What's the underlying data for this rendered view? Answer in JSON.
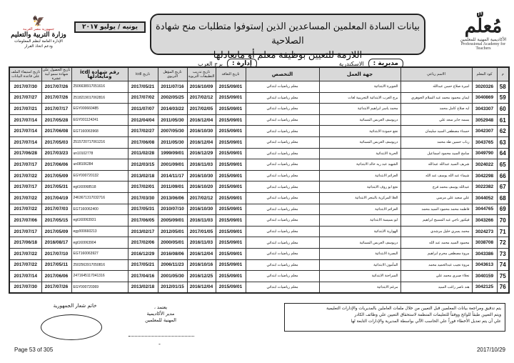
{
  "header": {
    "title_line1": "بيانات السادة المعلمين المساعدين الذين إستوفوا متطلبات منح شهادة الصلاحية",
    "title_line2": "اللازمة للتعيين  بوظيفة معلم أو مايعادلها",
    "period": "يونيه / يوليو ٢٠١٧",
    "academy_logo_text_ar": "الأكاديمية المهنية للمعلمين",
    "academy_logo_text_en": "Professional Academy for Teachers",
    "ministry_logo": {
      "country": "جمهورية مصر العربية",
      "ministry": "وزارة التربية والتعليم",
      "dept_line1": "الإدارة العامة لنظم المعلومات",
      "dept_line2": "ودعم اتخاذ القرار"
    },
    "directorate_label": "مديرية :",
    "directorate_value": "الاسكندرية",
    "administration_label": "إدارة :",
    "administration_value": "برج العرب"
  },
  "table": {
    "columns": [
      "م",
      "كود المعلم",
      "الاسم رباعي",
      "جهة العمل",
      "التخصص",
      "تاريخ التعاقد",
      "تاريخ تدريب التطبيقات التربوية",
      "تاريخ المؤهل التربوي",
      "تاريخ icdl",
      "رقم شهادة icdl ومايعادلها",
      "تاريخ الحصول على شهادة سمو أبية عشرة",
      "تاريخ استيفاء الملف على قاعدة البيانات"
    ],
    "rows": [
      {
        "n": "58",
        "code": "3020326",
        "name": "اميرة صلاح حسن عبدالله",
        "work": "الجويرة الابتدائية",
        "spec": "معلم رياضيات ابتدائي",
        "contract": "2015/09/01",
        "training": "2016/10/09",
        "qual": "2011/07/16",
        "icdl_date": "2017/05/21",
        "icdl_no": "2506638917051616",
        "cert": "2017/07/26",
        "file": "2017/07/30"
      },
      {
        "n": "59",
        "code": "3040869",
        "name": "ايمان محمود محمد عبد السلام الجوهري",
        "work": "برج العرب الابتدائية التجريبية لغات",
        "spec": "معلم رياضيات ابتدائي",
        "contract": "2015/09/01",
        "training": "2017/02/12",
        "qual": "2002/05/25",
        "icdl_date": "2017/07/02",
        "icdl_no": "2518219017062816",
        "cert": "2017/07/26",
        "file": "2017/07/27"
      },
      {
        "n": "60",
        "code": "3043307",
        "name": "ايه صلاح كامل محمد",
        "work": "محمد ياسر ابراهيم الابتدائية",
        "spec": "معلم رياضيات ابتدائي",
        "contract": "2015/09/01",
        "training": "2017/02/05",
        "qual": "2014/03/22",
        "icdl_date": "2011/07/07",
        "icdl_no": "EGY000660485",
        "cert": "2017/07/17",
        "file": "2017/07/21"
      },
      {
        "n": "61",
        "code": "3052948",
        "name": "بسمه جابر سعد علي",
        "work": "دريوسف العربس المسائية",
        "spec": "معلم رياضيات ابتدائي",
        "contract": "2015/09/01",
        "training": "2016/12/04",
        "qual": "2011/05/30",
        "icdl_date": "2012/04/04",
        "icdl_no": "EGY001124241",
        "cert": "2017/05/28",
        "file": "2017/07/14"
      },
      {
        "n": "62",
        "code": "3042307",
        "name": "حسناء مصطفى السيد سليمان",
        "work": "نجع حمودة الابتدائية",
        "spec": "معلم رياضيات ابتدائي",
        "contract": "2015/09/01",
        "training": "2016/10/30",
        "qual": "2007/05/30",
        "icdl_date": "2017/02/27",
        "icdl_no": "EGT160063968",
        "cert": "2017/06/08",
        "file": "2017/07/14"
      },
      {
        "n": "63",
        "code": "3043765",
        "name": "رباب حسين طه محمد",
        "work": "دريوسف العربس المسائية",
        "spec": "معلم رياضيات ابتدائي",
        "contract": "2015/09/01",
        "training": "2016/12/04",
        "qual": "2011/05/30",
        "icdl_date": "2017/06/08",
        "icdl_no": "2515720717061216",
        "cert": "2017/05/03",
        "file": "2017/07/14"
      },
      {
        "n": "64",
        "code": "3049790",
        "name": "سامح السيد محمود اسماعيل",
        "work": "الحرية الابتدائية",
        "spec": "معلم رياضيات ابتدائي",
        "contract": "2015/09/01",
        "training": "2016/12/29",
        "qual": "1999/09/01",
        "icdl_date": "2011/02/28",
        "icdl_no": "un10102778",
        "cert": "2017/03/23",
        "file": "2017/06/28"
      },
      {
        "n": "65",
        "code": "3024022",
        "name": "شريف السيد عبدالله عبدالله",
        "work": "الشهيد عبد ربه خالد الابتدائية",
        "spec": "معلم رياضيات ابتدائي",
        "contract": "2015/09/01",
        "training": "2016/11/03",
        "qual": "2001/09/01",
        "icdl_date": "2012/03/15",
        "icdl_no": "un08106284",
        "cert": "2017/06/06",
        "file": "2017/07/17"
      },
      {
        "n": "66",
        "code": "3042298",
        "name": "شيماء عبد الله يوسف عبد الله",
        "work": "العزائم الابتدائية",
        "spec": "معلم رياضيات ابتدائي",
        "contract": "2015/09/01",
        "training": "2016/10/30",
        "qual": "2014/11/17",
        "icdl_date": "2013/02/18",
        "icdl_no": "EGY000720132",
        "cert": "2017/05/09",
        "file": "2017/07/22"
      },
      {
        "n": "67",
        "code": "3022382",
        "name": "عبدالله يوسف محمد فرج",
        "work": "نجع ابو روف الابتدائية",
        "spec": "معلم رياضيات ابتدائي",
        "contract": "2015/09/01",
        "training": "2016/10/20",
        "qual": "2011/09/01",
        "icdl_date": "2017/02/01",
        "icdl_no": "egt160068518",
        "cert": "2017/05/31",
        "file": "2017/07/17"
      },
      {
        "n": "68",
        "code": "3044052",
        "name": "علي سعيد علي مرسي",
        "work": "العلا المركزية بالبنجر الابتدائية",
        "spec": "معلم رياضيات ابتدائي",
        "contract": "2015/09/01",
        "training": "2017/02/12",
        "qual": "2013/06/06",
        "icdl_date": "2017/03/30",
        "icdl_no": "2463671317032716",
        "cert": "2017/04/19",
        "file": "2017/07/22"
      },
      {
        "n": "69",
        "code": "3044765",
        "name": "فاطمه محمد محمود السيد محمد",
        "work": "العزائم الابتدائية",
        "spec": "معلم رياضيات ابتدائي",
        "contract": "2015/09/01",
        "training": "2016/10/30",
        "qual": "2010/07/10",
        "icdl_date": "2017/05/31",
        "icdl_no": "EGT160062400",
        "cert": "2017/07/03",
        "file": "2017/07/22"
      },
      {
        "n": "70",
        "code": "3043266",
        "name": "فيكتور ناجي عبد المسيح ابراهيم",
        "work": "ابو بسيسة الابتدائية",
        "spec": "معلم رياضيات ابتدائي",
        "contract": "2015/09/01",
        "training": "2016/11/03",
        "qual": "2005/09/01",
        "icdl_date": "2017/06/05",
        "icdl_no": "egt160063931",
        "cert": "2017/05/15",
        "file": "2017/07/06"
      },
      {
        "n": "71",
        "code": "3024273",
        "name": "محمد يسري خليل مرشدي",
        "work": "الهوارية الابتدائية",
        "spec": "معلم رياضيات ابتدائي",
        "contract": "2015/09/01",
        "training": "2017/01/05",
        "qual": "2012/05/01",
        "icdl_date": "2013/02/17",
        "icdl_no": "egy000660213",
        "cert": "2017/05/09",
        "file": "2017/07/17"
      },
      {
        "n": "72",
        "code": "3038708",
        "name": "محمود السيد محمد عبد الله",
        "work": "دريوسف العربس المسائية",
        "spec": "معلم رياضيات ابتدائي",
        "contract": "2015/09/01",
        "training": "2016/11/03",
        "qual": "2000/05/01",
        "icdl_date": "2017/02/06",
        "icdl_no": "egt160063904",
        "cert": "2016/08/17",
        "file": "2017/06/18"
      },
      {
        "n": "73",
        "code": "3043386",
        "name": "مروة مصطفى محرم ابراهيم",
        "work": "البصرة الابتدائية",
        "spec": "معلم رياضيات ابتدائي",
        "contract": "2015/09/01",
        "training": "2016/12/04",
        "qual": "2016/08/06",
        "icdl_date": "2016/12/29",
        "icdl_no": "EGT160063927",
        "cert": "2017/07/10",
        "file": "2017/07/22"
      },
      {
        "n": "74",
        "code": "3043613",
        "name": "مروة نجيب عبدالحميد محمد",
        "work": "المأمون الابتدائية",
        "spec": "معلم رياضيات ابتدائي",
        "contract": "2015/09/01",
        "training": "2016/10/16",
        "qual": "2006/11/23",
        "icdl_date": "2017/05/21",
        "icdl_no": "2502563917050816",
        "cert": "2017/05/11",
        "file": "2017/07/22"
      },
      {
        "n": "75",
        "code": "3040159",
        "name": "نجلاء صبري محمد علي",
        "work": "السراحنة الابتدائية",
        "spec": "معلم رياضيات ابتدائي",
        "contract": "2015/09/01",
        "training": "2016/12/25",
        "qual": "2001/05/30",
        "icdl_date": "2017/04/16",
        "icdl_no": "2471645117041316",
        "cert": "2017/06/06",
        "file": "2017/07/14"
      },
      {
        "n": "76",
        "code": "3042125",
        "name": "هند ناصر راغب السيد",
        "work": "مرغم الابتدائية",
        "spec": "معلم رياضيات ابتدائي",
        "contract": "2015/09/01",
        "training": "2016/12/04",
        "qual": "2012/01/15",
        "icdl_date": "2013/02/18",
        "icdl_no": "EGY000720369",
        "cert": "2017/07/26",
        "file": "2017/07/30"
      }
    ]
  },
  "footer": {
    "note_line1": "يتم تدقيق ومراجعة بيانات المعلمين قبل التعيين من خلال ملفات العاملين بالمديريات والإدارات التعليمية",
    "note_line2": "ويتم التعيين طبقاً للوائح ووفقاً للتعليمات المنظمة لاستحقاق التعيين علي وظائف الكادر",
    "note_line3": "علي أن يتم تعديل الأخطاء فوراً علي الحاسب الآلي بواسطة المديرية والإدارات التابعة لها",
    "approve_line1": "يعتمد ،",
    "approve_line2": "مدير  الأكاديمية",
    "approve_line3": "المهنية للمعلمين",
    "dash": "-",
    "seal_label": "خاتم شعار الجمهورية",
    "page": "Page 53 of 305",
    "date": "2017/10/29"
  }
}
